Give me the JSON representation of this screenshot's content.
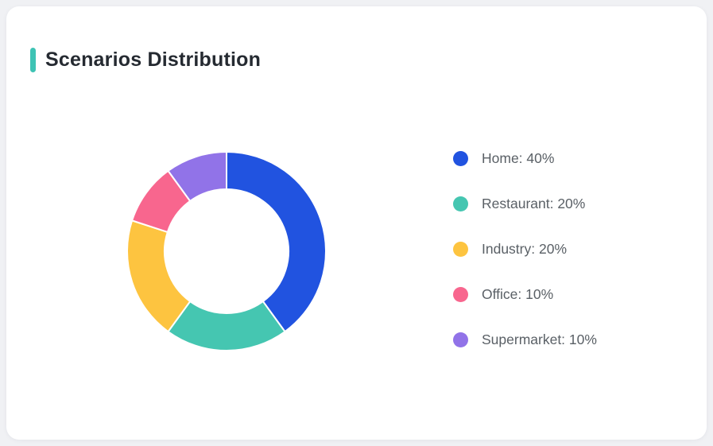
{
  "page": {
    "background_color": "#F0F1F4",
    "card_background_color": "#FFFFFF"
  },
  "header": {
    "title": "Scenarios Distribution",
    "accent_color": "#3EC3B4",
    "title_color": "#252A31"
  },
  "chart_data": {
    "type": "pie",
    "donut": true,
    "title": "Scenarios Distribution",
    "start_angle": "top",
    "direction": "clockwise",
    "legend_position": "right",
    "legend_format": "{name}: {value}%",
    "unit": "%",
    "categories": [
      "Home",
      "Restaurant",
      "Industry",
      "Office",
      "Supermarket"
    ],
    "values": [
      40,
      20,
      20,
      10,
      10
    ],
    "series": [
      {
        "name": "Home",
        "value": 40,
        "color": "#2153E0"
      },
      {
        "name": "Restaurant",
        "value": 20,
        "color": "#45C6B1"
      },
      {
        "name": "Industry",
        "value": 20,
        "color": "#FDC440"
      },
      {
        "name": "Office",
        "value": 10,
        "color": "#F8668E"
      },
      {
        "name": "Supermarket",
        "value": 10,
        "color": "#9173E8"
      }
    ],
    "outer_radius": 125,
    "inner_radius": 78,
    "segment_gap_color": "#FFFFFF"
  }
}
